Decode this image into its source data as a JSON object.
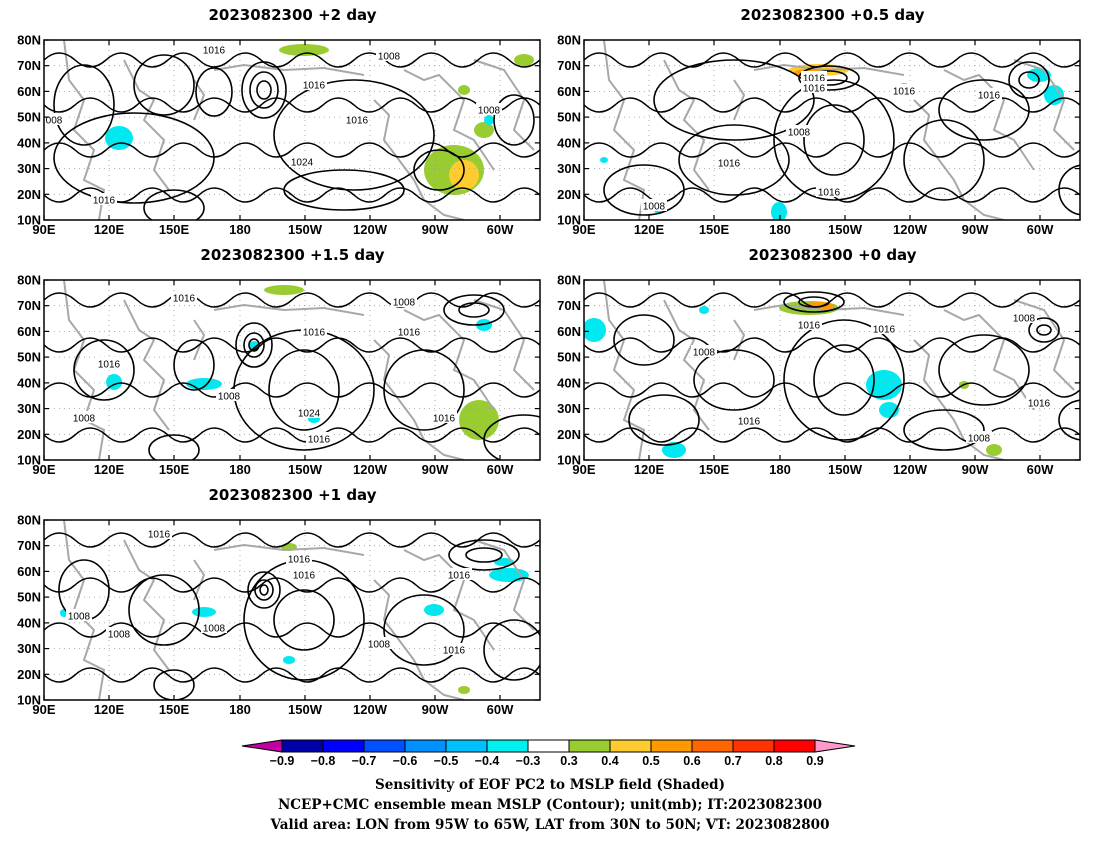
{
  "panels": [
    {
      "title": "2023082300 +2 day"
    },
    {
      "title": "2023082300 +0.5 day"
    },
    {
      "title": "2023082300 +1.5 day"
    },
    {
      "title": "2023082300 +0 day"
    },
    {
      "title": "2023082300 +1 day"
    }
  ],
  "map_axes": {
    "lon_ticks": [
      "90E",
      "120E",
      "150E",
      "180",
      "150W",
      "120W",
      "90W",
      "60W"
    ],
    "lat_ticks": [
      "80N",
      "70N",
      "60N",
      "50N",
      "40N",
      "30N",
      "20N",
      "10N"
    ],
    "lon_range": [
      "90E",
      "40W"
    ],
    "lat_range": [
      "10N",
      "80N"
    ],
    "grid": "dotted"
  },
  "contour_labels": [
    [
      "1016",
      "1008",
      "1016",
      "1016",
      "1024",
      "1016",
      "1008",
      "008"
    ],
    [
      "1016",
      "1016",
      "1016",
      "1008",
      "1016",
      "1016",
      "1008",
      "1016"
    ],
    [
      "1016",
      "1008",
      "1016",
      "1016",
      "1016",
      "1008",
      "1024",
      "1016",
      "1008",
      "1016"
    ],
    [
      "1016",
      "1016",
      "1008",
      "1008",
      "1016",
      "1016",
      "1008"
    ],
    [
      "1016",
      "1016",
      "1016",
      "1008",
      "1016",
      "1008",
      "1008",
      "1008",
      "1016"
    ]
  ],
  "colorbar": {
    "labels": [
      "−0.9",
      "−0.8",
      "−0.7",
      "−0.6",
      "−0.5",
      "−0.4",
      "−0.3",
      "0.3",
      "0.4",
      "0.5",
      "0.6",
      "0.7",
      "0.8",
      "0.9"
    ],
    "colors": [
      "#c000a0",
      "#0000a8",
      "#0000ff",
      "#0050ff",
      "#0090ff",
      "#00c0ff",
      "#00f0f0",
      "#ffffff",
      "#98cc30",
      "#ffcc30",
      "#ff9900",
      "#ff6600",
      "#ff3300",
      "#ff0000",
      "#ff99cc"
    ]
  },
  "shading_colors": {
    "neg": "#00e8f0",
    "pos1": "#98cc30",
    "pos2": "#ffcc30",
    "pos3": "#ff9900"
  },
  "caption": {
    "line1": "Sensitivity of EOF PC2 to MSLP field (Shaded)",
    "line2": "NCEP+CMC ensemble mean MSLP (Contour); unit(mb); IT:2023082300",
    "line3": "Valid area: LON from 95W to 65W, LAT from 30N to 50N; VT: 2023082800"
  }
}
